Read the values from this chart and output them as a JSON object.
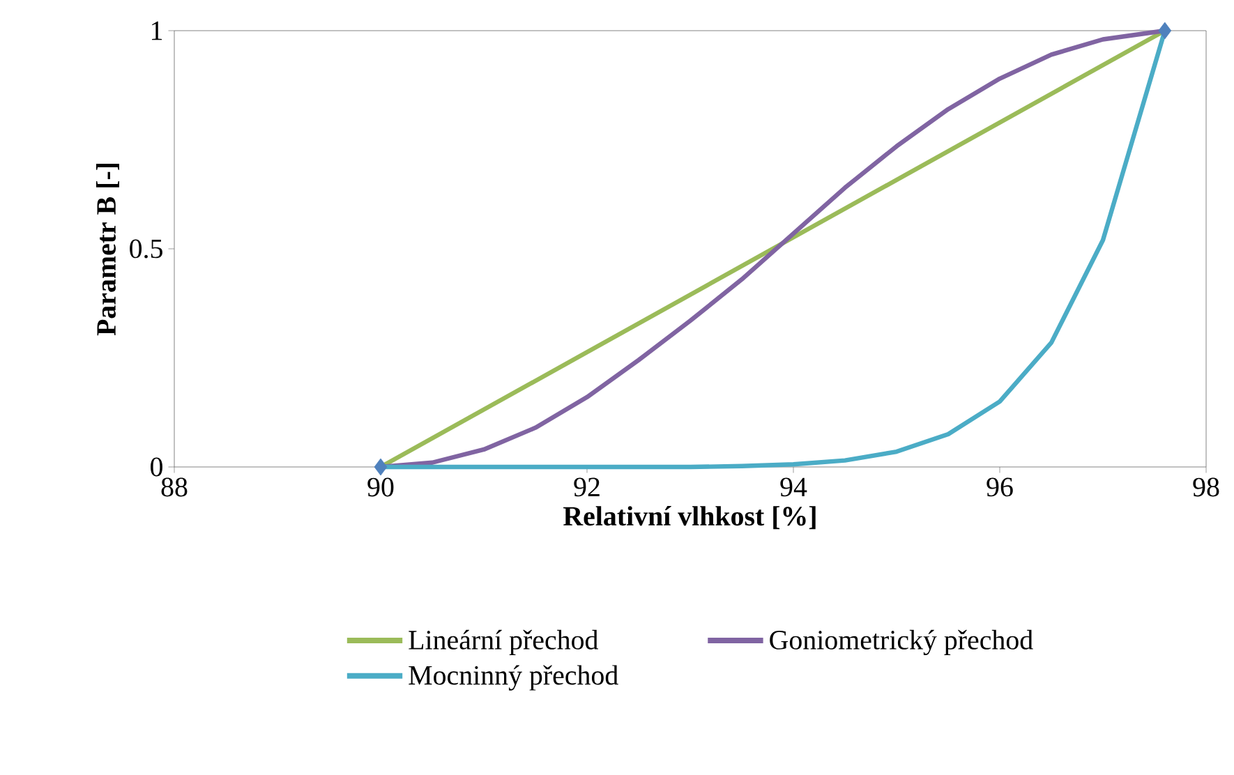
{
  "chart_data": {
    "type": "line",
    "xlabel": "Relativní vlhkost [%]",
    "ylabel": "Parametr B [-]",
    "xlim": [
      88,
      98
    ],
    "xticks": [
      88,
      90,
      92,
      94,
      96,
      98
    ],
    "ylim": [
      0,
      1
    ],
    "yticks": [
      0,
      0.5,
      1
    ],
    "grid": false,
    "legend": "bottom",
    "series": [
      {
        "name": "Lineární přechod",
        "color": "#9bbb59",
        "x": [
          90,
          97.6
        ],
        "values": [
          0,
          1
        ]
      },
      {
        "name": "Goniometrický přechod",
        "color": "#8064a2",
        "x": [
          90,
          90.5,
          91,
          91.5,
          92,
          92.5,
          93,
          93.5,
          94,
          94.5,
          95,
          95.5,
          96,
          96.5,
          97,
          97.6
        ],
        "values": [
          0,
          0.01,
          0.04,
          0.09,
          0.16,
          0.245,
          0.335,
          0.43,
          0.535,
          0.64,
          0.735,
          0.82,
          0.89,
          0.945,
          0.98,
          1
        ]
      },
      {
        "name": "Mocninný přechod",
        "color": "#4bacc6",
        "x": [
          90,
          90.5,
          91,
          91.5,
          92,
          92.5,
          93,
          93.5,
          94,
          94.5,
          95,
          95.5,
          96,
          96.5,
          97,
          97.6
        ],
        "values": [
          0,
          0,
          0,
          0,
          0,
          0,
          0,
          0.002,
          0.006,
          0.015,
          0.035,
          0.075,
          0.15,
          0.285,
          0.52,
          1
        ]
      },
      {
        "type": "scatter",
        "marker": "diamond",
        "color": "#4f81bd",
        "x": [
          90,
          97.6
        ],
        "values": [
          0,
          1
        ]
      }
    ]
  }
}
